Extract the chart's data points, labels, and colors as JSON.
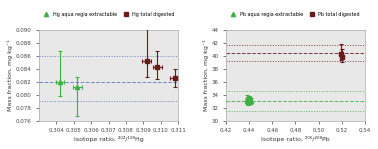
{
  "left": {
    "title_legend1": "Hg aqua regia extractable",
    "title_legend2": "Hg total digested",
    "xlabel": "Isotope ratio, ²⁰²/¹⁹⁸Hg",
    "ylabel": "Mass fraction, mg kg⁻¹",
    "xlim": [
      0.303,
      0.311
    ],
    "ylim": [
      0.076,
      0.09
    ],
    "xticks": [
      0.304,
      0.305,
      0.306,
      0.307,
      0.308,
      0.309,
      0.31,
      0.311
    ],
    "xtick_labels": [
      "0.304",
      "0.305",
      "0.306",
      "0.307",
      "0.308",
      "0.309",
      "0.310",
      "0.311"
    ],
    "yticks": [
      0.076,
      0.078,
      0.08,
      0.082,
      0.084,
      0.086,
      0.088,
      0.09
    ],
    "ytick_labels": [
      "0.076",
      "0.078",
      "0.080",
      "0.082",
      "0.084",
      "0.086",
      "0.088",
      "0.090"
    ],
    "green_x": [
      0.3042,
      0.3052
    ],
    "green_y": [
      0.082,
      0.0812
    ],
    "green_yerr_lo": [
      0.0022,
      0.0045
    ],
    "green_yerr_hi": [
      0.0048,
      0.0015
    ],
    "green_xerr": [
      0.00025,
      0.00025
    ],
    "red_x": [
      0.3092,
      0.3098,
      0.3108
    ],
    "red_y": [
      0.0852,
      0.0842,
      0.0826
    ],
    "red_yerr_lo": [
      0.0025,
      0.0018,
      0.0014
    ],
    "red_yerr_hi": [
      0.005,
      0.0025,
      0.0014
    ],
    "red_xerr": [
      0.00025,
      0.00025,
      0.00025
    ],
    "hlines_blue": [
      0.079,
      0.082,
      0.086
    ],
    "hlines_style": [
      "dotted",
      "dashed",
      "dotted"
    ]
  },
  "right": {
    "title_legend1": "Pb aqua regia extractable",
    "title_legend2": "Pb total digested",
    "xlabel": "Isotope ratio, ²⁰⁶/²⁰⁸Pb",
    "ylabel": "Mass fraction, mg kg⁻¹",
    "xlim": [
      0.42,
      0.54
    ],
    "ylim": [
      30,
      44
    ],
    "xticks": [
      0.42,
      0.44,
      0.46,
      0.48,
      0.5,
      0.52,
      0.54
    ],
    "xtick_labels": [
      "0.42",
      "0.44",
      "0.46",
      "0.48",
      "0.50",
      "0.52",
      "0.54"
    ],
    "yticks": [
      30,
      32,
      34,
      36,
      38,
      40,
      42,
      44
    ],
    "ytick_labels": [
      "30",
      "32",
      "34",
      "36",
      "38",
      "40",
      "42",
      "44"
    ],
    "green_x": [
      0.438,
      0.4385,
      0.439,
      0.4395,
      0.44,
      0.4405,
      0.441,
      0.4415
    ],
    "green_y": [
      33.4,
      33.1,
      32.8,
      33.0,
      33.3,
      33.2,
      32.9,
      33.1
    ],
    "green_yerr_lo": [
      0.5,
      0.4,
      0.4,
      0.4,
      0.5,
      0.4,
      0.4,
      0.4
    ],
    "green_yerr_hi": [
      0.5,
      0.4,
      0.4,
      0.4,
      0.5,
      0.4,
      0.4,
      0.4
    ],
    "green_xerr": [
      0.001,
      0.001,
      0.001,
      0.001,
      0.001,
      0.001,
      0.001,
      0.001
    ],
    "red_x": [
      0.5195,
      0.5205
    ],
    "red_y": [
      40.3,
      39.8
    ],
    "red_yerr_lo": [
      1.0,
      0.7
    ],
    "red_yerr_hi": [
      1.5,
      1.2
    ],
    "red_xerr": [
      0.0015,
      0.0015
    ],
    "hlines_green": [
      31.5,
      33.0,
      34.5
    ],
    "hlines_red": [
      39.2,
      40.4,
      41.7
    ],
    "hlines_green_style": [
      "dotted",
      "dashed",
      "dotted"
    ],
    "hlines_red_style": [
      "dotted",
      "dashed",
      "dotted"
    ]
  },
  "green_color": "#3cb043",
  "red_color": "#6b1a1a",
  "blue_color": "#5577cc",
  "bg_color": "#e8e8e8",
  "spine_color": "#aaaaaa"
}
